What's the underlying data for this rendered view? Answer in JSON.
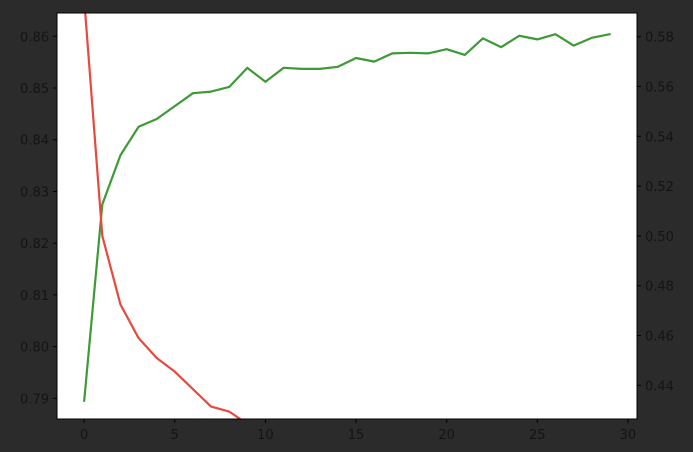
{
  "chart_data": {
    "type": "line",
    "title": "",
    "xlabel": "",
    "xlim": [
      -1.5,
      30.5
    ],
    "x_ticks": [
      0,
      5,
      10,
      15,
      20,
      25,
      30
    ],
    "left_axis": {
      "ylabel": "",
      "ylim": [
        0.786,
        0.8645
      ],
      "ticks": [
        0.79,
        0.8,
        0.81,
        0.82,
        0.83,
        0.84,
        0.85,
        0.86
      ],
      "tick_labels": [
        "0.79",
        "0.80",
        "0.81",
        "0.82",
        "0.83",
        "0.84",
        "0.85",
        "0.86"
      ]
    },
    "right_axis": {
      "ylabel": "",
      "ylim": [
        0.4265,
        0.5895
      ],
      "ticks": [
        0.44,
        0.46,
        0.48,
        0.5,
        0.52,
        0.54,
        0.56,
        0.58
      ],
      "tick_labels": [
        "0.44",
        "0.46",
        "0.48",
        "0.50",
        "0.52",
        "0.54",
        "0.56",
        "0.58"
      ]
    },
    "grid": false,
    "legend": "none",
    "series": [
      {
        "axis": "left",
        "color": "#3e9a37",
        "x": [
          0,
          1,
          2,
          3,
          4,
          5,
          6,
          7,
          8,
          9,
          10,
          11,
          12,
          13,
          14,
          15,
          16,
          17,
          18,
          19,
          20,
          21,
          22,
          23,
          24,
          25,
          26,
          27,
          28,
          29
        ],
        "values": [
          0.7895,
          0.8275,
          0.837,
          0.8425,
          0.844,
          0.8465,
          0.849,
          0.8493,
          0.8502,
          0.8539,
          0.8512,
          0.8539,
          0.8537,
          0.8537,
          0.8541,
          0.8558,
          0.8551,
          0.8567,
          0.8568,
          0.8567,
          0.8575,
          0.8564,
          0.8596,
          0.8579,
          0.8601,
          0.8594,
          0.8604,
          0.8582,
          0.8597,
          0.8604
        ]
      },
      {
        "axis": "right",
        "color": "#e8493e",
        "x": [
          0,
          1,
          2,
          3,
          4,
          5,
          6,
          7,
          8,
          9,
          10
        ],
        "values": [
          0.595,
          0.5,
          0.4725,
          0.459,
          0.451,
          0.4455,
          0.4385,
          0.4315,
          0.4295,
          0.4245,
          0.425
        ]
      }
    ]
  }
}
